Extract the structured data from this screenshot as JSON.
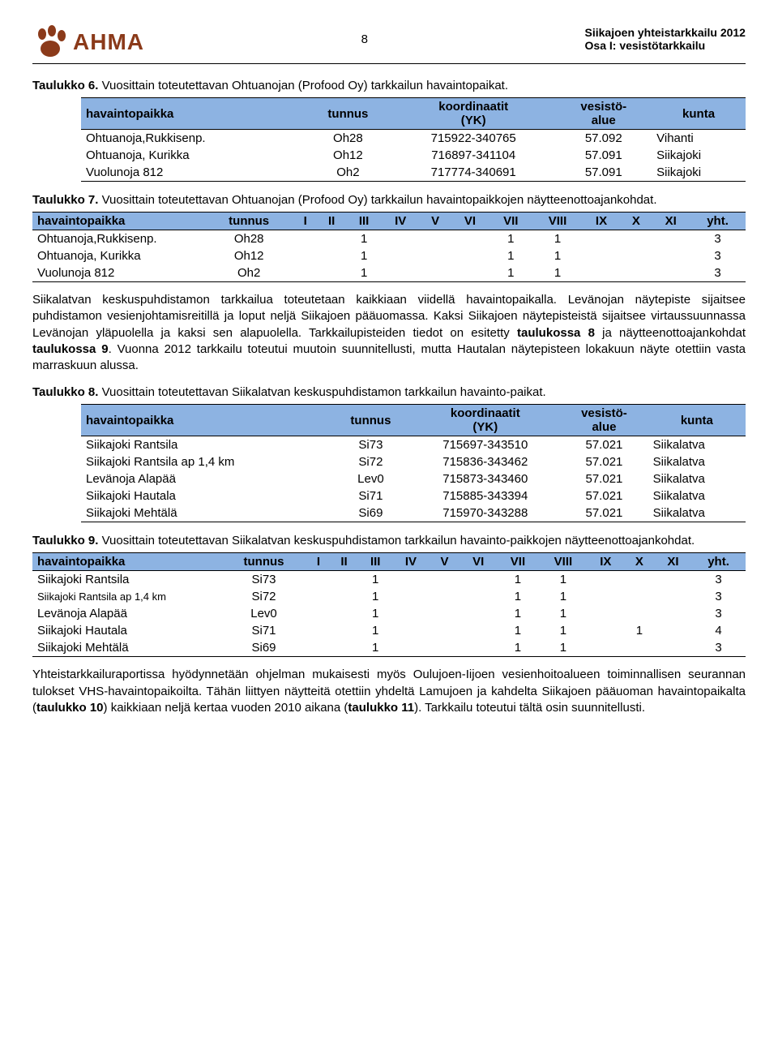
{
  "header": {
    "logo_text": "AHMA",
    "page_number": "8",
    "title_line1": "Siikajoen yhteistarkkailu 2012",
    "title_line2": "Osa I: vesistötarkkailu"
  },
  "caption6": {
    "label": "Taulukko 6.",
    "text": "Vuosittain toteutettavan Ohtuanojan (Profood Oy) tarkkailun havaintopaikat."
  },
  "table6": {
    "headers": [
      "havaintopaikka",
      "tunnus",
      "koordinaatit (YK)",
      "vesistö-alue",
      "kunta"
    ],
    "rows": [
      [
        "Ohtuanoja,Rukkisenp.",
        "Oh28",
        "715922-340765",
        "57.092",
        "Vihanti"
      ],
      [
        "Ohtuanoja, Kurikka",
        "Oh12",
        "716897-341104",
        "57.091",
        "Siikajoki"
      ],
      [
        "Vuolunoja 812",
        "Oh2",
        "717774-340691",
        "57.091",
        "Siikajoki"
      ]
    ]
  },
  "caption7": {
    "label": "Taulukko 7.",
    "text": "Vuosittain toteutettavan Ohtuanojan (Profood Oy) tarkkailun havaintopaikkojen näytteenottoajankohdat."
  },
  "table7": {
    "headers": [
      "havaintopaikka",
      "tunnus",
      "I",
      "II",
      "III",
      "IV",
      "V",
      "VI",
      "VII",
      "VIII",
      "IX",
      "X",
      "XI",
      "yht."
    ],
    "rows": [
      [
        "Ohtuanoja,Rukkisenp.",
        "Oh28",
        "",
        "",
        "1",
        "",
        "",
        "",
        "1",
        "1",
        "",
        "",
        "",
        "3"
      ],
      [
        "Ohtuanoja, Kurikka",
        "Oh12",
        "",
        "",
        "1",
        "",
        "",
        "",
        "1",
        "1",
        "",
        "",
        "",
        "3"
      ],
      [
        "Vuolunoja 812",
        "Oh2",
        "",
        "",
        "1",
        "",
        "",
        "",
        "1",
        "1",
        "",
        "",
        "",
        "3"
      ]
    ]
  },
  "para1a": "Siikalatvan keskuspuhdistamon tarkkailua toteutetaan kaikkiaan viidellä havaintopaikalla. Levänojan näytepiste sijaitsee puhdistamon vesienjohtamisreitillä ja loput neljä Siikajoen pääuomassa. Kaksi Siikajoen näytepisteistä sijaitsee virtaussuunnassa Levänojan yläpuolella ja kaksi sen alapuolella. Tarkkailupisteiden tiedot on esitetty ",
  "para1_bold1": "taulukossa 8",
  "para1b": " ja näytteenottoajankohdat ",
  "para1_bold2": "taulukossa 9",
  "para1c": ". Vuonna 2012 tarkkailu toteutui muutoin suunnitellusti, mutta Hautalan näytepisteen lokakuun näyte otettiin vasta marraskuun alussa.",
  "caption8": {
    "label": "Taulukko 8.",
    "text": "Vuosittain toteutettavan Siikalatvan keskuspuhdistamon tarkkailun havainto-paikat."
  },
  "table8": {
    "headers": [
      "havaintopaikka",
      "tunnus",
      "koordinaatit (YK)",
      "vesistö-alue",
      "kunta"
    ],
    "rows": [
      [
        "Siikajoki Rantsila",
        "Si73",
        "715697-343510",
        "57.021",
        "Siikalatva"
      ],
      [
        "Siikajoki Rantsila ap 1,4 km",
        "Si72",
        "715836-343462",
        "57.021",
        "Siikalatva"
      ],
      [
        "Levänoja Alapää",
        "Lev0",
        "715873-343460",
        "57.021",
        "Siikalatva"
      ],
      [
        "Siikajoki Hautala",
        "Si71",
        "715885-343394",
        "57.021",
        "Siikalatva"
      ],
      [
        "Siikajoki Mehtälä",
        "Si69",
        "715970-343288",
        "57.021",
        "Siikalatva"
      ]
    ]
  },
  "caption9": {
    "label": "Taulukko 9.",
    "text": "Vuosittain toteutettavan Siikalatvan keskuspuhdistamon tarkkailun havainto-paikkojen näytteenottoajankohdat."
  },
  "table9": {
    "headers": [
      "havaintopaikka",
      "tunnus",
      "I",
      "II",
      "III",
      "IV",
      "V",
      "VI",
      "VII",
      "VIII",
      "IX",
      "X",
      "XI",
      "yht."
    ],
    "rows": [
      [
        "Siikajoki Rantsila",
        "Si73",
        "",
        "",
        "1",
        "",
        "",
        "",
        "1",
        "1",
        "",
        "",
        "",
        "3"
      ],
      [
        "Siikajoki Rantsila ap 1,4 km",
        "Si72",
        "",
        "",
        "1",
        "",
        "",
        "",
        "1",
        "1",
        "",
        "",
        "",
        "3"
      ],
      [
        "Levänoja Alapää",
        "Lev0",
        "",
        "",
        "1",
        "",
        "",
        "",
        "1",
        "1",
        "",
        "",
        "",
        "3"
      ],
      [
        "Siikajoki Hautala",
        "Si71",
        "",
        "",
        "1",
        "",
        "",
        "",
        "1",
        "1",
        "",
        "1",
        "",
        "4"
      ],
      [
        "Siikajoki Mehtälä",
        "Si69",
        "",
        "",
        "1",
        "",
        "",
        "",
        "1",
        "1",
        "",
        "",
        "",
        "3"
      ]
    ]
  },
  "para2a": "Yhteistarkkailuraportissa hyödynnetään ohjelman mukaisesti myös Oulujoen-Iijoen vesienhoitoalueen toiminnallisen seurannan tulokset VHS-havaintopaikoilta. Tähän liittyen näytteitä otettiin yhdeltä Lamujoen ja kahdelta Siikajoen pääuoman havaintopaikalta (",
  "para2_bold1": "taulukko 10",
  "para2b": ") kaikkiaan neljä kertaa vuoden 2010 aikana (",
  "para2_bold2": "taulukko 11",
  "para2c": "). Tarkkailu toteutui tältä osin suunnitellusti.",
  "colors": {
    "header_bg": "#8db3e2",
    "logo_color": "#8b3a1a"
  }
}
